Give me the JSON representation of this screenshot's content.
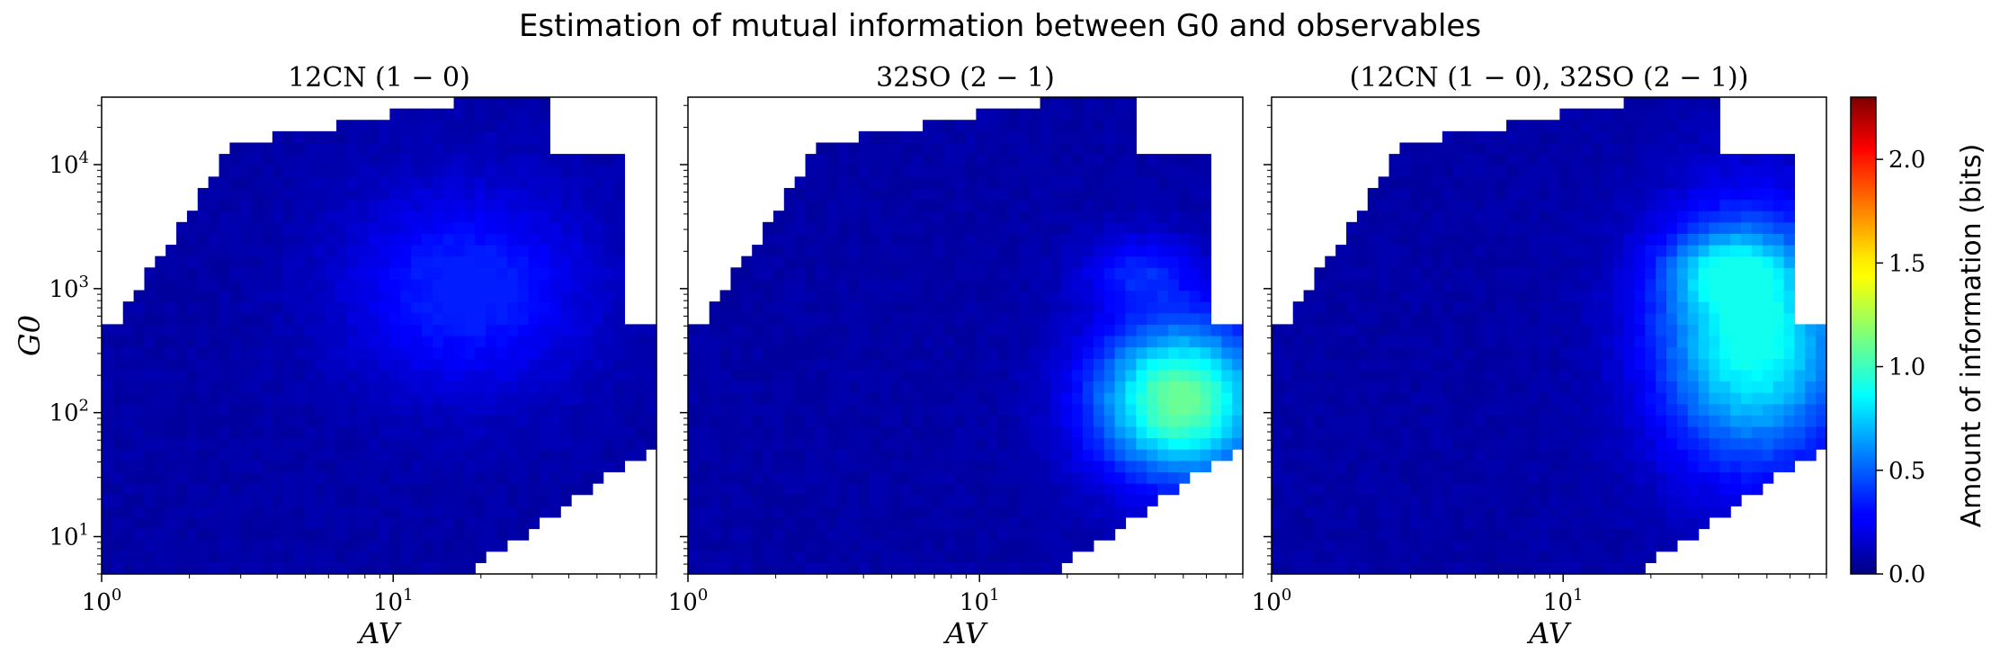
{
  "figure": {
    "suptitle": "Estimation of mutual information between G0 and observables"
  },
  "chart_data": [
    {
      "type": "heatmap",
      "title": "12CN (1 − 0)",
      "xlabel": "AV",
      "ylabel": "G0",
      "xscale": "log",
      "yscale": "log",
      "xlim": [
        1,
        80
      ],
      "ylim": [
        5,
        35000
      ],
      "x_ticks": [
        "10^0",
        "10^1"
      ],
      "y_ticks": [
        "10^1",
        "10^2",
        "10^3",
        "10^4"
      ],
      "hotspot": {
        "av": [
          8,
          40
        ],
        "g0": [
          200,
          5000
        ],
        "peak_bits": 0.3
      },
      "max_bits": 0.3
    },
    {
      "type": "heatmap",
      "title": "32SO (2 − 1)",
      "xlabel": "AV",
      "ylabel": "",
      "xscale": "log",
      "yscale": "log",
      "xlim": [
        1,
        80
      ],
      "ylim": [
        5,
        35000
      ],
      "x_ticks": [
        "10^0",
        "10^1"
      ],
      "hotspot": {
        "av": [
          30,
          80
        ],
        "g0": [
          40,
          400
        ],
        "peak_bits": 1.05
      },
      "max_bits": 1.05
    },
    {
      "type": "heatmap",
      "title": "(12CN (1 − 0), 32SO (2 − 1))",
      "xlabel": "AV",
      "ylabel": "",
      "xscale": "log",
      "yscale": "log",
      "xlim": [
        1,
        80
      ],
      "ylim": [
        5,
        35000
      ],
      "x_ticks": [
        "10^0",
        "10^1"
      ],
      "hotspot": {
        "av": [
          25,
          80
        ],
        "g0": [
          50,
          3000
        ],
        "peak_bits": 0.85
      },
      "max_bits": 0.85
    }
  ],
  "colorbar": {
    "label": "Amount of information (bits)",
    "range": [
      0.0,
      2.3
    ],
    "ticks": [
      "0.0",
      "0.5",
      "1.0",
      "1.5",
      "2.0"
    ],
    "tick_values": [
      0.0,
      0.5,
      1.0,
      1.5,
      2.0
    ],
    "colormap": "jet"
  }
}
